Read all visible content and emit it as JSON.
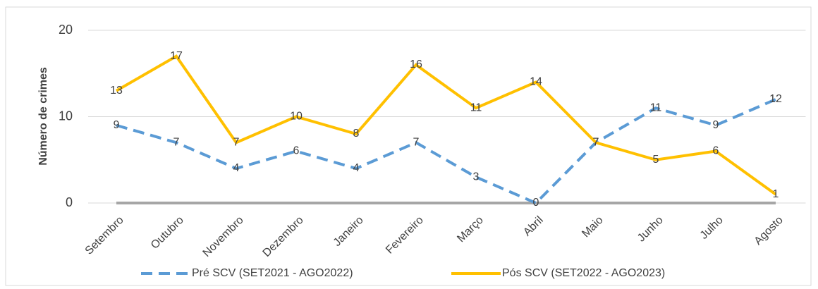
{
  "chart_data": {
    "type": "line",
    "y_label": "Número de crimes",
    "categories": [
      "Setembro",
      "Outubro",
      "Novembro",
      "Dezembro",
      "Janeiro",
      "Fevereiro",
      "Março",
      "Abril",
      "Maio",
      "Junho",
      "Julho",
      "Agosto"
    ],
    "series": [
      {
        "name": "Pré SCV (SET2021 - AGO2022)",
        "color": "#5b9bd5",
        "dashed": true,
        "values": [
          9,
          7,
          4,
          6,
          4,
          7,
          3,
          0,
          7,
          11,
          9,
          12
        ]
      },
      {
        "name": "Pós SCV (SET2022 - AGO2023)",
        "color": "#ffc000",
        "dashed": false,
        "values": [
          13,
          17,
          7,
          10,
          8,
          16,
          11,
          14,
          7,
          5,
          6,
          1
        ]
      }
    ],
    "ylim": [
      0,
      20
    ],
    "yticks": [
      0,
      10,
      20
    ],
    "grid": true,
    "legend": "bottom"
  }
}
